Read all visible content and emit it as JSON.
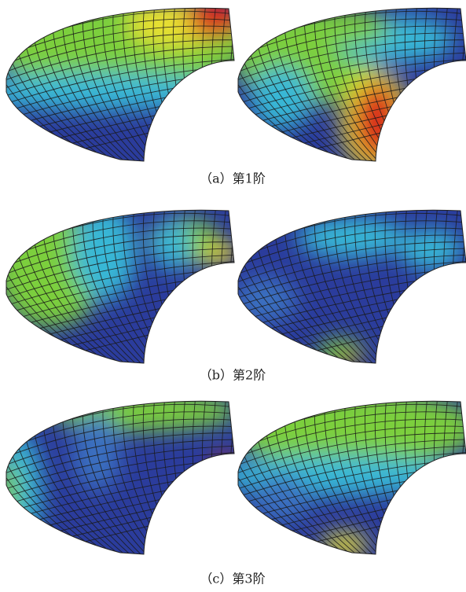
{
  "captions": [
    "（a）第1阶",
    "（b）第2阶",
    "（c）第3阶"
  ]
}
